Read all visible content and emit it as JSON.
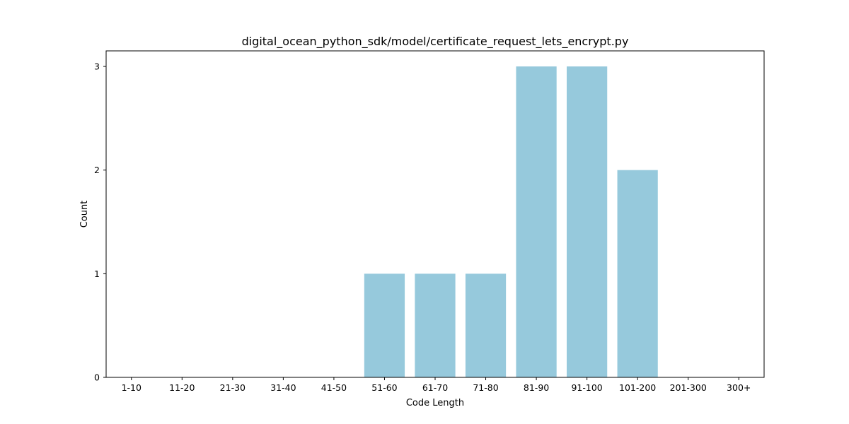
{
  "chart_data": {
    "type": "bar",
    "title": "digital_ocean_python_sdk/model/certificate_request_lets_encrypt.py",
    "xlabel": "Code Length",
    "ylabel": "Count",
    "categories": [
      "1-10",
      "11-20",
      "21-30",
      "31-40",
      "41-50",
      "51-60",
      "61-70",
      "71-80",
      "81-90",
      "91-100",
      "101-200",
      "201-300",
      "300+"
    ],
    "values": [
      0,
      0,
      0,
      0,
      0,
      1,
      1,
      1,
      3,
      3,
      2,
      0,
      0
    ],
    "ylim": [
      0,
      3.15
    ],
    "yticks": [
      0,
      1,
      2,
      3
    ],
    "bar_color": "#96c9dc",
    "grid": false
  }
}
